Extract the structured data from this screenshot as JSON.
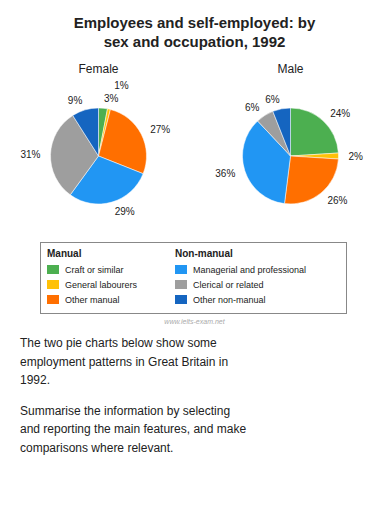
{
  "title": "Employees and self-employed: by\nsex and occupation, 1992",
  "chart_data": [
    {
      "type": "pie",
      "title": "Female",
      "categories": [
        "Craft or similar",
        "General labourers",
        "Other manual",
        "Managerial and professional",
        "Clerical or related",
        "Other non-manual"
      ],
      "values": [
        3,
        1,
        27,
        29,
        31,
        9
      ],
      "value_labels": [
        "3%",
        "1%",
        "27%",
        "29%",
        "31%",
        "9%"
      ],
      "colors": [
        "#4caf50",
        "#ffc107",
        "#ff6f00",
        "#2196f3",
        "#9e9e9e",
        "#1565c0"
      ],
      "data_labels": true
    },
    {
      "type": "pie",
      "title": "Male",
      "categories": [
        "Craft or similar",
        "General labourers",
        "Other manual",
        "Managerial and professional",
        "Clerical or related",
        "Other non-manual"
      ],
      "values": [
        24,
        2,
        26,
        36,
        6,
        6
      ],
      "value_labels": [
        "24%",
        "2%",
        "26%",
        "36%",
        "6%",
        "6%"
      ],
      "colors": [
        "#4caf50",
        "#ffc107",
        "#ff6f00",
        "#2196f3",
        "#9e9e9e",
        "#1565c0"
      ],
      "data_labels": true
    }
  ],
  "legend_groups": [
    {
      "title": "Manual",
      "items": [
        "Craft or similar",
        "General labourers",
        "Other manual"
      ]
    },
    {
      "title": "Non-manual",
      "items": [
        "Managerial and professional",
        "Clerical or related",
        "Other non-manual"
      ]
    }
  ],
  "annotations": [
    "www.ielts-exam.net",
    "The two pie charts below show some\nemployment patterns in Great Britain in\n1992.",
    "Summarise the information by selecting\nand reporting the main features, and make\ncomparisons where relevant."
  ]
}
